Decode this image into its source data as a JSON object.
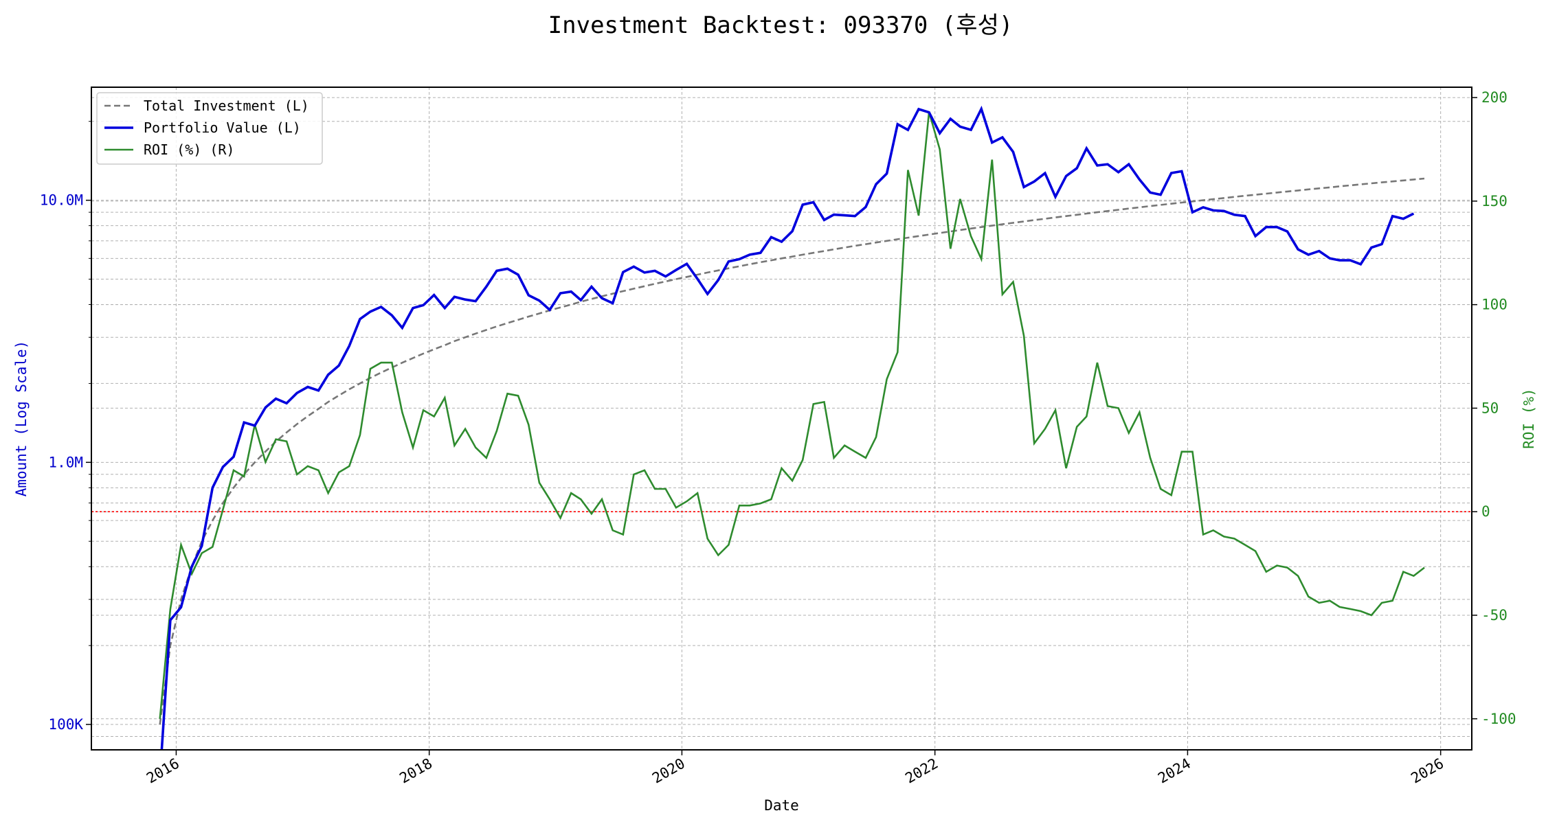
{
  "chart_data": {
    "type": "line",
    "title": "Investment Backtest: 093370 (후성)",
    "xlabel": "Date",
    "ylabel_left": "Amount (Log Scale)",
    "ylabel_right": "ROI (%)",
    "left_axis": {
      "scale": "log",
      "ylim": [
        80000,
        27000000
      ],
      "tick_labels": [
        "100K",
        "1.0M",
        "10.0M"
      ],
      "tick_values": [
        100000,
        1000000,
        10000000
      ]
    },
    "right_axis": {
      "ylim": [
        -115,
        205
      ],
      "tick_values": [
        -100,
        -50,
        0,
        50,
        100,
        150,
        200
      ]
    },
    "x_axis": {
      "xlim": [
        "2015-05-01",
        "2026-04-01"
      ],
      "tick_labels": [
        "2016",
        "2018",
        "2020",
        "2022",
        "2024",
        "2026"
      ]
    },
    "grid": true,
    "legend_position": "upper-left",
    "zero_line": {
      "axis": "right",
      "value": 0,
      "color": "#ff0000"
    },
    "colors": {
      "total": "#777777",
      "portfolio": "#0000dd",
      "roi": "#2e8b2e",
      "zero": "#ff0000"
    },
    "series": [
      {
        "name": "Total Investment (L)",
        "axis": "left",
        "style": "dashed",
        "values": [
          100000,
          200000,
          300000,
          400000,
          500000,
          600000,
          700000,
          800000,
          900000,
          1000000,
          1100000,
          1200000,
          1300000,
          1400000,
          1500000,
          1600000,
          1700000,
          1800000,
          1900000,
          2000000,
          2100000,
          2200000,
          2300000,
          2400000,
          2500000,
          2600000,
          2700000,
          2800000,
          2900000,
          3000000,
          3100000,
          3200000,
          3300000,
          3400000,
          3500000,
          3600000,
          3700000,
          3800000,
          3900000,
          4000000,
          4100000,
          4200000,
          4300000,
          4400000,
          4500000,
          4600000,
          4700000,
          4800000,
          4900000,
          5000000,
          5100000,
          5200000,
          5300000,
          5400000,
          5500000,
          5600000,
          5700000,
          5800000,
          5900000,
          6000000,
          6100000,
          6200000,
          6300000,
          6400000,
          6500000,
          6600000,
          6700000,
          6800000,
          6900000,
          7000000,
          7100000,
          7200000,
          7300000,
          7400000,
          7500000,
          7600000,
          7700000,
          7800000,
          7900000,
          8000000,
          8100000,
          8200000,
          8300000,
          8400000,
          8500000,
          8600000,
          8700000,
          8800000,
          8900000,
          9000000,
          9100000,
          9200000,
          9300000,
          9400000,
          9500000,
          9600000,
          9700000,
          9800000,
          9900000,
          10000000,
          10100000,
          10200000,
          10300000,
          10400000,
          10500000,
          10600000,
          10700000,
          10800000,
          10900000,
          11000000,
          11100000,
          11200000,
          11300000,
          11400000,
          11500000,
          11600000,
          11700000,
          11800000,
          11900000,
          12000000,
          12100000
        ]
      },
      {
        "name": "Portfolio Value (L)",
        "axis": "left",
        "style": "solid",
        "values": [
          0,
          250000,
          280000,
          400000,
          480000,
          800000,
          960000,
          1050000,
          1420000,
          1380000,
          1620000,
          1750000,
          1680000,
          1840000,
          1940000,
          1880000,
          2160000,
          2340000,
          2780000,
          3520000,
          3760000,
          3920000,
          3640000,
          3260000,
          3880000,
          3980000,
          4350000,
          3880000,
          4280000,
          4180000,
          4120000,
          4680000,
          5380000,
          5480000,
          5200000,
          4340000,
          4140000,
          3820000,
          4420000,
          4480000,
          4160000,
          4680000,
          4230000,
          4050000,
          5320000,
          5580000,
          5300000,
          5380000,
          5120000,
          5420000,
          5720000,
          5010000,
          4390000,
          4960000,
          5840000,
          5960000,
          6200000,
          6300000,
          7230000,
          6950000,
          7620000,
          9620000,
          9830000,
          8410000,
          8810000,
          8760000,
          8700000,
          9420000,
          11510000,
          12640000,
          19510000,
          18550000,
          22270000,
          21650000,
          18020000,
          20450000,
          19090000,
          18560000,
          22300000,
          16600000,
          17380000,
          15300000,
          11230000,
          11790000,
          12690000,
          10310000,
          12370000,
          13250000,
          15770000,
          13570000,
          13720000,
          12800000,
          13720000,
          12000000,
          10700000,
          10500000,
          12700000,
          12900000,
          9000000,
          9400000,
          9150000,
          9100000,
          8800000,
          8700000,
          7300000,
          7900000,
          7900000,
          7600000,
          6500000,
          6200000,
          6400000,
          6000000,
          5900000,
          5900000,
          5700000,
          6600000,
          6800000,
          8700000,
          8500000,
          8900000
        ]
      },
      {
        "name": "ROI (%) (R)",
        "axis": "right",
        "style": "solid",
        "values": [
          -100,
          -47,
          -16,
          -30,
          -20,
          -17,
          1,
          20,
          17,
          42,
          24,
          35,
          34,
          18,
          22,
          20,
          9,
          19,
          22,
          37,
          69,
          72,
          72,
          48,
          31,
          49,
          46,
          55,
          32,
          40,
          31,
          26,
          39,
          57,
          56,
          42,
          14,
          6,
          -3,
          9,
          6,
          -1,
          6,
          -9,
          -11,
          18,
          20,
          11,
          11,
          2,
          5,
          9,
          -13,
          -21,
          -16,
          3,
          3,
          4,
          6,
          21,
          15,
          25,
          52,
          53,
          26,
          32,
          29,
          26,
          36,
          64,
          77,
          165,
          143,
          193,
          175,
          127,
          151,
          133,
          122,
          170,
          105,
          111,
          85,
          33,
          40,
          49,
          21,
          41,
          46,
          72,
          51,
          50,
          38,
          48,
          26,
          11,
          8,
          29,
          29,
          -11,
          -9,
          -12,
          -13,
          -16,
          -19,
          -29,
          -26,
          -27,
          -31,
          -41,
          -44,
          -43,
          -46,
          -47,
          -48,
          -50,
          -44,
          -43,
          -29,
          -31,
          -27
        ]
      }
    ]
  }
}
